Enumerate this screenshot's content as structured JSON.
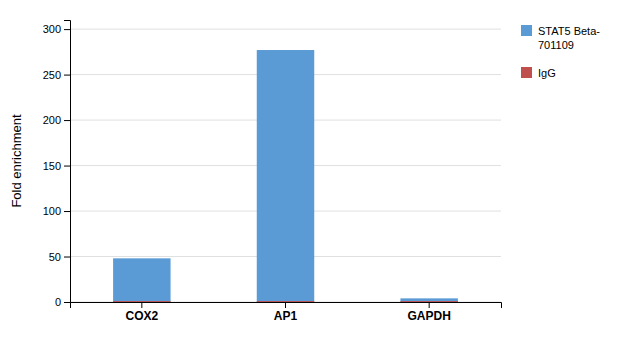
{
  "chart_data": {
    "type": "bar",
    "categories": [
      "COX2",
      "AP1",
      "GAPDH"
    ],
    "series": [
      {
        "name": "STAT5 Beta-\n701109",
        "color": "#5B9BD5",
        "values": [
          48,
          277,
          4
        ]
      },
      {
        "name": "IgG",
        "color": "#C0504D",
        "values": [
          1,
          1,
          1
        ]
      }
    ],
    "y_label": "Fold enrichment",
    "ylim": [
      0,
      310
    ],
    "yticks": [
      0,
      50,
      100,
      150,
      200,
      250,
      300
    ],
    "grid": true,
    "legend": "right"
  }
}
